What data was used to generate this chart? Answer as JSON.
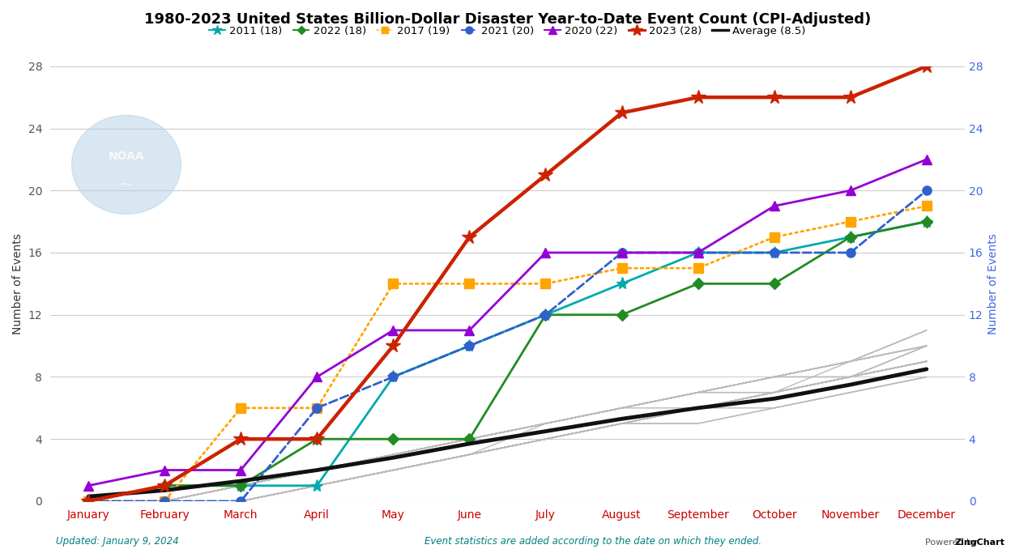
{
  "title": "1980-2023 United States Billion-Dollar Disaster Year-to-Date Event Count (CPI-Adjusted)",
  "xlabel_months": [
    "January",
    "February",
    "March",
    "April",
    "May",
    "June",
    "July",
    "August",
    "September",
    "October",
    "November",
    "December"
  ],
  "x_positions": [
    0,
    1,
    2,
    3,
    4,
    5,
    6,
    7,
    8,
    9,
    10,
    11
  ],
  "ylabel_left": "Number of Events",
  "ylabel_right": "Number of Events",
  "footer_left": "Updated: January 9, 2024",
  "footer_right": "Event statistics are added according to the date on which they ended.",
  "footer_powered": "Powered by ",
  "footer_zing": "ZingChart",
  "ylim": [
    0,
    28
  ],
  "yticks": [
    0,
    4,
    8,
    12,
    16,
    20,
    24,
    28
  ],
  "series": {
    "2011": {
      "label": "2011 (18)",
      "color": "#00AAAA",
      "linestyle": "-",
      "marker": "*",
      "markersize": 11,
      "linewidth": 2.0,
      "values": [
        0,
        1,
        1,
        1,
        8,
        10,
        12,
        14,
        16,
        16,
        17,
        18
      ]
    },
    "2022": {
      "label": "2022 (18)",
      "color": "#228B22",
      "linestyle": "-",
      "marker": "D",
      "markersize": 7,
      "linewidth": 2.0,
      "values": [
        0,
        1,
        1,
        4,
        4,
        4,
        12,
        12,
        14,
        14,
        17,
        18
      ]
    },
    "2017": {
      "label": "2017 (19)",
      "color": "#FFA500",
      "linestyle": ":",
      "marker": "s",
      "markersize": 8,
      "linewidth": 2.0,
      "values": [
        0,
        0,
        6,
        6,
        14,
        14,
        14,
        15,
        15,
        17,
        18,
        19
      ]
    },
    "2021": {
      "label": "2021 (20)",
      "color": "#3060CC",
      "linestyle": "--",
      "marker": "o",
      "markersize": 8,
      "linewidth": 2.0,
      "values": [
        0,
        0,
        0,
        6,
        8,
        10,
        12,
        16,
        16,
        16,
        16,
        20
      ]
    },
    "2020": {
      "label": "2020 (22)",
      "color": "#9400D3",
      "linestyle": "-",
      "marker": "^",
      "markersize": 9,
      "linewidth": 2.0,
      "values": [
        1,
        2,
        2,
        8,
        11,
        11,
        16,
        16,
        16,
        19,
        20,
        22
      ]
    },
    "2023": {
      "label": "2023 (28)",
      "color": "#CC2200",
      "linestyle": "-",
      "marker": "*",
      "markersize": 13,
      "linewidth": 3.2,
      "values": [
        0,
        1,
        4,
        4,
        10,
        17,
        21,
        25,
        26,
        26,
        26,
        28
      ]
    },
    "average": {
      "label": "Average (8.5)",
      "color": "#111111",
      "linestyle": "-",
      "marker": "None",
      "markersize": 0,
      "linewidth": 3.5,
      "values": [
        0.3,
        0.7,
        1.3,
        2.0,
        2.8,
        3.7,
        4.5,
        5.3,
        6.0,
        6.6,
        7.5,
        8.5
      ]
    }
  },
  "background_lines": [
    [
      0,
      0,
      1,
      2,
      3,
      4,
      5,
      6,
      7,
      7,
      8,
      9
    ],
    [
      0,
      0,
      0,
      1,
      2,
      3,
      4,
      5,
      6,
      7,
      8,
      10
    ],
    [
      0,
      0,
      1,
      1,
      2,
      3,
      4,
      5,
      6,
      7,
      9,
      11
    ],
    [
      0,
      0,
      0,
      1,
      2,
      3,
      5,
      6,
      7,
      8,
      9,
      10
    ],
    [
      0,
      1,
      1,
      2,
      3,
      4,
      5,
      6,
      7,
      7,
      8,
      9
    ],
    [
      0,
      0,
      1,
      2,
      3,
      4,
      5,
      6,
      7,
      8,
      9,
      10
    ],
    [
      0,
      0,
      0,
      1,
      2,
      3,
      4,
      5,
      6,
      7,
      8,
      9
    ],
    [
      0,
      0,
      1,
      2,
      3,
      4,
      5,
      6,
      7,
      8,
      8,
      9
    ],
    [
      0,
      0,
      0,
      1,
      2,
      3,
      4,
      5,
      6,
      6,
      7,
      8
    ],
    [
      0,
      0,
      1,
      1,
      2,
      3,
      4,
      5,
      6,
      7,
      8,
      9
    ],
    [
      0,
      0,
      0,
      1,
      2,
      3,
      4,
      5,
      6,
      7,
      8,
      10
    ],
    [
      0,
      1,
      1,
      2,
      3,
      4,
      5,
      6,
      7,
      8,
      9,
      11
    ],
    [
      0,
      0,
      1,
      2,
      3,
      4,
      5,
      6,
      7,
      8,
      9,
      10
    ],
    [
      0,
      0,
      0,
      1,
      2,
      3,
      4,
      5,
      5,
      6,
      7,
      8
    ],
    [
      0,
      0,
      1,
      1,
      2,
      3,
      4,
      5,
      6,
      7,
      8,
      9
    ],
    [
      0,
      0,
      0,
      1,
      2,
      3,
      4,
      5,
      6,
      7,
      8,
      9
    ],
    [
      0,
      0,
      1,
      2,
      3,
      4,
      5,
      6,
      6,
      7,
      8,
      9
    ],
    [
      0,
      0,
      0,
      1,
      2,
      3,
      4,
      5,
      6,
      7,
      8,
      9
    ],
    [
      0,
      0,
      1,
      2,
      3,
      4,
      5,
      6,
      7,
      8,
      9,
      10
    ],
    [
      0,
      1,
      1,
      2,
      3,
      4,
      5,
      6,
      7,
      8,
      8,
      9
    ],
    [
      0,
      0,
      0,
      1,
      2,
      3,
      4,
      5,
      6,
      7,
      8,
      9
    ],
    [
      0,
      0,
      1,
      2,
      3,
      4,
      5,
      6,
      7,
      8,
      9,
      11
    ],
    [
      0,
      0,
      0,
      1,
      2,
      3,
      4,
      5,
      6,
      7,
      8,
      10
    ],
    [
      0,
      0,
      1,
      1,
      2,
      3,
      4,
      5,
      6,
      7,
      8,
      9
    ],
    [
      0,
      0,
      0,
      1,
      2,
      3,
      4,
      5,
      5,
      6,
      7,
      8
    ],
    [
      0,
      0,
      1,
      2,
      3,
      4,
      5,
      6,
      7,
      8,
      9,
      10
    ],
    [
      0,
      0,
      0,
      1,
      2,
      3,
      4,
      5,
      6,
      7,
      8,
      9
    ],
    [
      0,
      1,
      1,
      2,
      3,
      4,
      5,
      6,
      7,
      8,
      9,
      10
    ]
  ],
  "background_lines_color": "#BBBBBB",
  "background_color": "#FFFFFF",
  "plot_bg_color": "#FFFFFF",
  "grid_color": "#CCCCCC",
  "title_fontsize": 13,
  "axis_label_fontsize": 10,
  "tick_fontsize": 10,
  "legend_fontsize": 9.5
}
